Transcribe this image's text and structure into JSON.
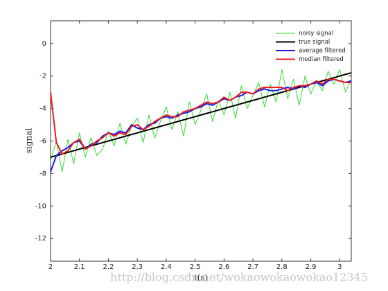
{
  "chart_data": {
    "type": "line",
    "xlabel": "t(s)",
    "ylabel": "signal",
    "watermark": "http://blog.csdn.net/wokaowokaowokao12345",
    "x": [
      2,
      2.02,
      2.04,
      2.06,
      2.08,
      2.1,
      2.12,
      2.14,
      2.16,
      2.18,
      2.2,
      2.22,
      2.24,
      2.26,
      2.28,
      2.3,
      2.32,
      2.34,
      2.36,
      2.38,
      2.4,
      2.42,
      2.44,
      2.46,
      2.48,
      2.5,
      2.52,
      2.54,
      2.56,
      2.58,
      2.6,
      2.62,
      2.64,
      2.66,
      2.68,
      2.7,
      2.72,
      2.74,
      2.76,
      2.78,
      2.8,
      2.82,
      2.84,
      2.86,
      2.88,
      2.9,
      2.92,
      2.94,
      2.96,
      2.98,
      3,
      3.02,
      3.04
    ],
    "series": [
      {
        "name": "noisy signal",
        "color": "#33dd33",
        "width": 1,
        "values": [
          -7.2,
          -6.0,
          -7.9,
          -5.9,
          -7.4,
          -5.5,
          -7.0,
          -5.8,
          -6.9,
          -6.5,
          -5.4,
          -6.3,
          -4.9,
          -6.2,
          -5.1,
          -4.6,
          -6.1,
          -4.4,
          -5.8,
          -4.8,
          -3.9,
          -5.3,
          -4.2,
          -5.7,
          -3.6,
          -5.0,
          -4.1,
          -3.1,
          -4.8,
          -3.5,
          -4.4,
          -3.0,
          -4.6,
          -2.6,
          -4.0,
          -3.2,
          -2.4,
          -3.9,
          -2.5,
          -3.6,
          -1.6,
          -3.4,
          -2.2,
          -3.8,
          -2.0,
          -3.1,
          -2.3,
          -2.9,
          -1.7,
          -2.5,
          -1.6,
          -3.0,
          -2.2
        ]
      },
      {
        "name": "true signal",
        "color": "#000000",
        "width": 2,
        "values": [
          -7.0,
          -6.9,
          -6.8,
          -6.7,
          -6.6,
          -6.5,
          -6.4,
          -6.3,
          -6.2,
          -6.1,
          -6.0,
          -5.9,
          -5.8,
          -5.7,
          -5.6,
          -5.5,
          -5.4,
          -5.3,
          -5.2,
          -5.1,
          -5.0,
          -4.9,
          -4.8,
          -4.7,
          -4.6,
          -4.5,
          -4.4,
          -4.3,
          -4.2,
          -4.1,
          -4.0,
          -3.9,
          -3.8,
          -3.7,
          -3.6,
          -3.5,
          -3.4,
          -3.3,
          -3.2,
          -3.1,
          -3.0,
          -2.9,
          -2.8,
          -2.7,
          -2.6,
          -2.5,
          -2.4,
          -2.3,
          -2.2,
          -2.1,
          -2.0,
          -1.9,
          -1.8
        ]
      },
      {
        "name": "average filtered",
        "color": "#1a1aee",
        "width": 2,
        "values": [
          -7.9,
          -6.9,
          -6.6,
          -6.4,
          -6.1,
          -6.0,
          -6.5,
          -6.2,
          -6.1,
          -5.7,
          -5.5,
          -5.6,
          -5.4,
          -5.5,
          -5.0,
          -5.2,
          -5.3,
          -5.0,
          -4.9,
          -4.6,
          -4.5,
          -4.6,
          -4.4,
          -4.3,
          -4.2,
          -4.0,
          -3.9,
          -3.7,
          -3.8,
          -3.6,
          -3.4,
          -3.5,
          -3.3,
          -3.2,
          -3.0,
          -3.1,
          -2.9,
          -2.8,
          -2.9,
          -2.9,
          -2.8,
          -2.7,
          -2.8,
          -2.6,
          -2.7,
          -2.5,
          -2.4,
          -2.6,
          -2.3,
          -2.2,
          -2.3,
          -2.4,
          -2.3
        ]
      },
      {
        "name": "median filtered",
        "color": "#ee1a1a",
        "width": 2,
        "values": [
          -3.0,
          -6.1,
          -6.8,
          -6.6,
          -6.1,
          -5.9,
          -6.5,
          -6.3,
          -6.0,
          -5.8,
          -5.5,
          -5.7,
          -5.5,
          -5.6,
          -5.1,
          -5.0,
          -5.3,
          -5.1,
          -4.8,
          -4.6,
          -4.4,
          -4.5,
          -4.5,
          -4.2,
          -4.1,
          -4.0,
          -3.8,
          -3.6,
          -3.7,
          -3.6,
          -3.3,
          -3.5,
          -3.3,
          -3.0,
          -3.0,
          -3.1,
          -2.8,
          -2.7,
          -2.7,
          -2.7,
          -2.7,
          -2.9,
          -2.7,
          -2.6,
          -2.6,
          -2.5,
          -2.3,
          -2.5,
          -2.2,
          -2.2,
          -2.3,
          -2.4,
          -2.4
        ]
      }
    ],
    "xlim": [
      2,
      3.04
    ],
    "ylim": [
      -13.4,
      1.4
    ],
    "xticks": [
      2,
      2.1,
      2.2,
      2.3,
      2.4,
      2.5,
      2.6,
      2.7,
      2.8,
      2.9,
      3
    ],
    "yticks": [
      0,
      -2,
      -4,
      -6,
      -8,
      -10,
      -12
    ],
    "legend": "top-right",
    "grid": false
  }
}
